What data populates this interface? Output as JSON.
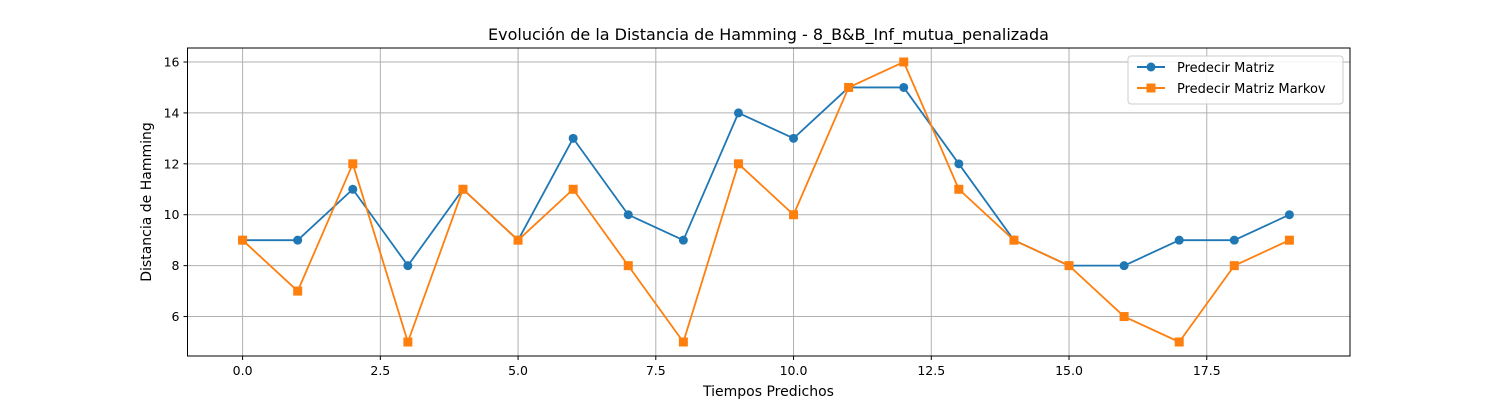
{
  "chart_data": {
    "type": "line",
    "title": "Evolución de la Distancia de Hamming - 8_B&B_Inf_mutua_penalizada",
    "xlabel": "Tiempos Predichos",
    "ylabel": "Distancia de Hamming",
    "x": [
      0,
      1,
      2,
      3,
      4,
      5,
      6,
      7,
      8,
      9,
      10,
      11,
      12,
      13,
      14,
      15,
      16,
      17,
      18,
      19
    ],
    "xlim": [
      -1,
      20.1
    ],
    "ylim": [
      4.45,
      16.55
    ],
    "xticks": [
      "0.0",
      "2.5",
      "5.0",
      "7.5",
      "10.0",
      "12.5",
      "15.0",
      "17.5"
    ],
    "yticks": [
      "6",
      "8",
      "10",
      "12",
      "14",
      "16"
    ],
    "grid": true,
    "legend_position": "top-right",
    "series": [
      {
        "name": "Predecir Matriz",
        "color": "#1f77b4",
        "marker": "circle",
        "values": [
          9,
          9,
          11,
          8,
          11,
          9,
          13,
          10,
          9,
          14,
          13,
          15,
          15,
          12,
          9,
          8,
          8,
          9,
          9,
          10
        ]
      },
      {
        "name": "Predecir Matriz Markov",
        "color": "#ff7f0e",
        "marker": "square",
        "values": [
          9,
          7,
          12,
          5,
          11,
          9,
          11,
          8,
          5,
          12,
          10,
          15,
          16,
          11,
          9,
          8,
          6,
          5,
          8,
          9
        ]
      }
    ]
  }
}
